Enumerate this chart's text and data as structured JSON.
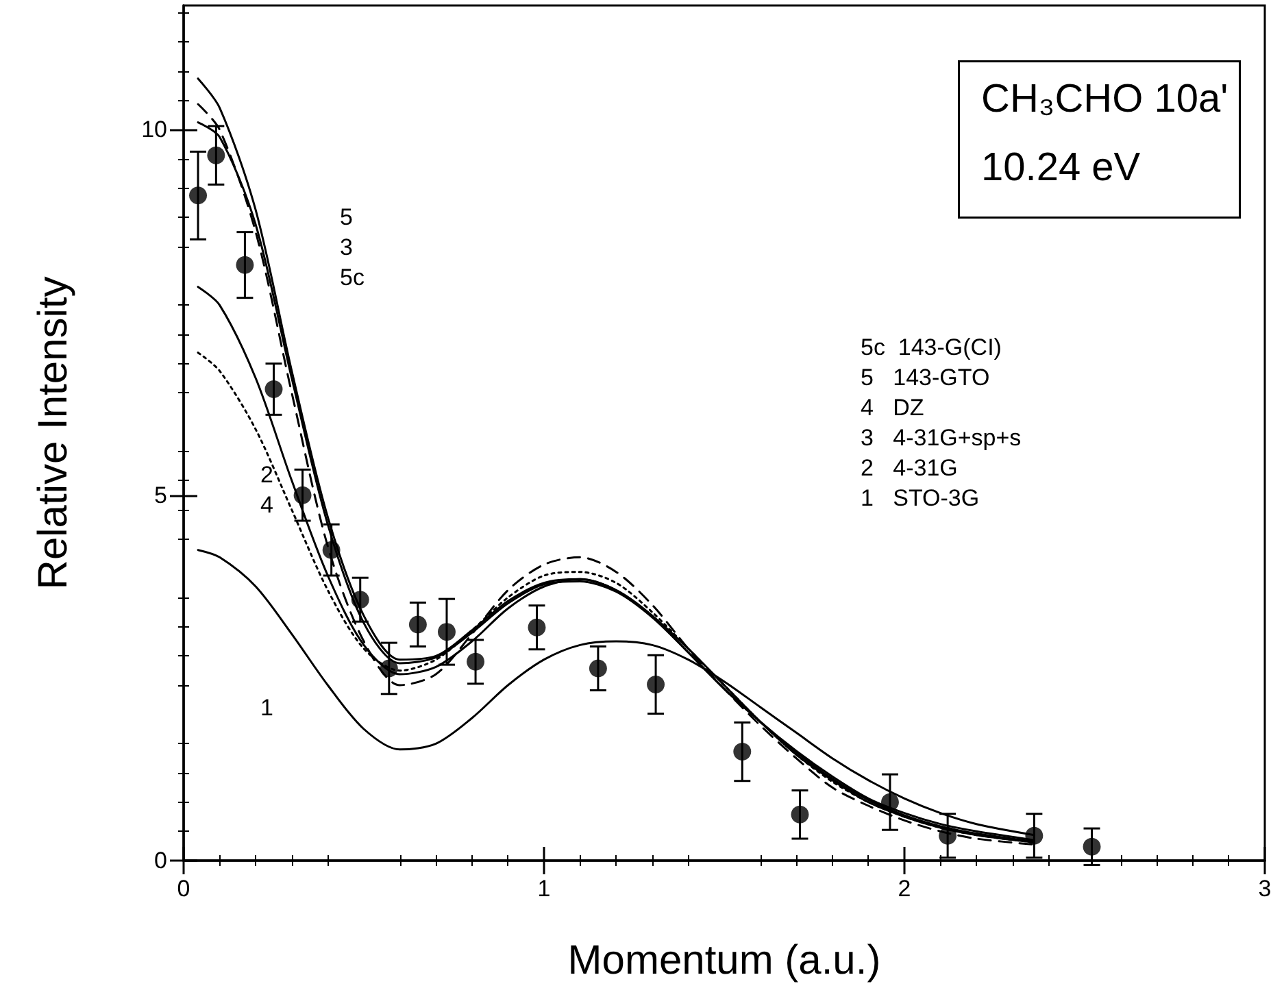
{
  "chart_data": {
    "type": "line",
    "title": "CH₃CHO 10a'",
    "subtitle": "10.24 eV",
    "xlabel": "Momentum (a.u.)",
    "ylabel": "Relative Intensity",
    "xlim": [
      0,
      3
    ],
    "xticks": [
      0,
      1,
      2,
      3
    ],
    "ylim": [
      0,
      11.7
    ],
    "yticks": [
      0,
      5,
      10
    ],
    "grid": false,
    "series": [
      {
        "type": "scatter",
        "color": "#000000",
        "marker": "circle",
        "x": [
          0.04,
          0.09,
          0.17,
          0.25,
          0.33,
          0.41,
          0.49,
          0.57,
          0.65,
          0.73,
          0.81,
          0.98,
          1.15,
          1.31,
          1.55,
          1.71,
          1.96,
          2.12,
          2.36,
          2.52
        ],
        "values": [
          9.1,
          9.65,
          8.15,
          6.45,
          5.0,
          4.25,
          3.57,
          2.63,
          3.23,
          3.13,
          2.72,
          3.19,
          2.63,
          2.41,
          1.49,
          0.63,
          0.8,
          0.34,
          0.34,
          0.19
        ],
        "errors": [
          0.6,
          0.4,
          0.45,
          0.35,
          0.35,
          0.35,
          0.3,
          0.35,
          0.3,
          0.45,
          0.3,
          0.3,
          0.3,
          0.4,
          0.4,
          0.33,
          0.38,
          0.3,
          0.3,
          0.25
        ]
      },
      {
        "type": "line",
        "color": "#000000",
        "line_style": "solid",
        "x": [
          0.04,
          0.1,
          0.2,
          0.3,
          0.4,
          0.5,
          0.6,
          0.7,
          0.8,
          0.9,
          1.0,
          1.1,
          1.2,
          1.3,
          1.4,
          1.5,
          1.6,
          1.7,
          1.8,
          1.9,
          2.0,
          2.1,
          2.2,
          2.36
        ],
        "values": [
          10.7,
          10.3,
          8.9,
          6.7,
          4.7,
          3.35,
          2.75,
          2.8,
          3.15,
          3.55,
          3.8,
          3.85,
          3.7,
          3.35,
          2.85,
          2.35,
          1.9,
          1.5,
          1.15,
          0.85,
          0.65,
          0.5,
          0.4,
          0.28
        ]
      },
      {
        "type": "line",
        "color": "#000000",
        "line_style": "solid",
        "x": [
          0.04,
          0.1,
          0.2,
          0.3,
          0.4,
          0.5,
          0.6,
          0.7,
          0.8,
          0.9,
          1.0,
          1.1,
          1.2,
          1.3,
          1.4,
          1.5,
          1.6,
          1.7,
          1.8,
          1.9,
          2.0,
          2.1,
          2.2,
          2.36
        ],
        "values": [
          10.1,
          9.9,
          8.7,
          6.6,
          4.6,
          3.25,
          2.7,
          2.78,
          3.12,
          3.52,
          3.78,
          3.82,
          3.68,
          3.33,
          2.85,
          2.35,
          1.9,
          1.48,
          1.12,
          0.83,
          0.62,
          0.47,
          0.37,
          0.26
        ]
      },
      {
        "type": "line",
        "color": "#000000",
        "line_style": "dashed",
        "x": [
          0.04,
          0.1,
          0.2,
          0.3,
          0.4,
          0.5,
          0.6,
          0.7,
          0.8,
          0.9,
          1.0,
          1.1,
          1.2,
          1.3,
          1.4,
          1.5,
          1.6,
          1.7,
          1.8,
          1.9,
          2.0,
          2.1,
          2.2,
          2.36
        ],
        "values": [
          10.35,
          10.0,
          8.6,
          6.4,
          4.3,
          3.0,
          2.4,
          2.55,
          3.1,
          3.7,
          4.05,
          4.15,
          3.95,
          3.5,
          2.9,
          2.35,
          1.85,
          1.4,
          1.0,
          0.75,
          0.55,
          0.4,
          0.3,
          0.22
        ]
      },
      {
        "type": "line",
        "color": "#000000",
        "line_style": "solid",
        "x": [
          0.04,
          0.1,
          0.2,
          0.3,
          0.4,
          0.5,
          0.6,
          0.7,
          0.8,
          0.9,
          1.0,
          1.1,
          1.2,
          1.3,
          1.4,
          1.5,
          1.6,
          1.7,
          1.8,
          1.9,
          2.0,
          2.1,
          2.2,
          2.36
        ],
        "values": [
          7.85,
          7.6,
          6.6,
          5.2,
          3.9,
          2.95,
          2.55,
          2.65,
          3.0,
          3.45,
          3.75,
          3.85,
          3.7,
          3.35,
          2.9,
          2.4,
          1.9,
          1.45,
          1.1,
          0.8,
          0.6,
          0.45,
          0.35,
          0.25
        ]
      },
      {
        "type": "line",
        "color": "#000000",
        "line_style": "dotted",
        "x": [
          0.04,
          0.1,
          0.2,
          0.3,
          0.4,
          0.5,
          0.6,
          0.7,
          0.8,
          0.9,
          1.0,
          1.1,
          1.2,
          1.3,
          1.4,
          1.5,
          1.6,
          1.7,
          1.8,
          1.9,
          2.0,
          2.1,
          2.2,
          2.36
        ],
        "values": [
          6.95,
          6.7,
          5.9,
          4.8,
          3.7,
          2.9,
          2.6,
          2.75,
          3.15,
          3.6,
          3.9,
          3.95,
          3.8,
          3.4,
          2.9,
          2.4,
          1.9,
          1.45,
          1.08,
          0.8,
          0.6,
          0.45,
          0.35,
          0.25
        ]
      },
      {
        "type": "line",
        "color": "#000000",
        "line_style": "solid",
        "x": [
          0.04,
          0.1,
          0.2,
          0.3,
          0.4,
          0.5,
          0.6,
          0.7,
          0.8,
          0.9,
          1.0,
          1.1,
          1.2,
          1.3,
          1.4,
          1.5,
          1.6,
          1.7,
          1.8,
          1.9,
          2.0,
          2.1,
          2.2,
          2.36
        ],
        "values": [
          4.25,
          4.15,
          3.75,
          3.1,
          2.4,
          1.8,
          1.52,
          1.6,
          1.95,
          2.4,
          2.75,
          2.95,
          3.0,
          2.95,
          2.75,
          2.45,
          2.1,
          1.75,
          1.4,
          1.1,
          0.85,
          0.65,
          0.5,
          0.35
        ]
      }
    ],
    "annotations": [
      "5",
      "3",
      "5c",
      "2",
      "4",
      "1",
      "5c  143-G(CI)",
      "5   143-GTO",
      "4   DZ",
      "3   4-31G+sp+s",
      "2   4-31G",
      "1   STO-3G"
    ]
  }
}
